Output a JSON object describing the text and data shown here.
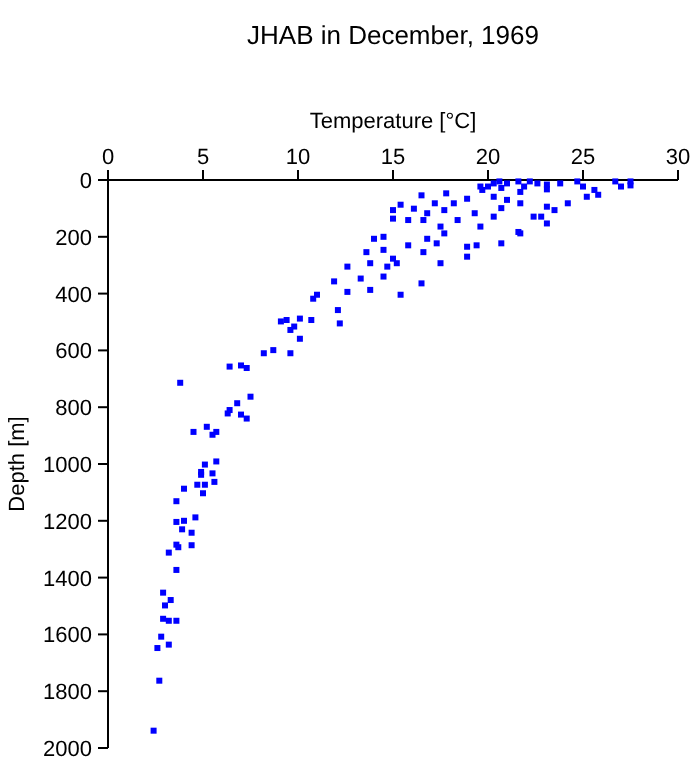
{
  "chart_data": {
    "type": "scatter",
    "title": "JHAB in December, 1969",
    "xlabel": "Temperature [°C]",
    "ylabel": "Depth [m]",
    "xlim": [
      0,
      30
    ],
    "xticks": [
      0,
      5,
      10,
      15,
      20,
      25,
      30
    ],
    "ylim": [
      2000,
      0
    ],
    "yticks": [
      0,
      200,
      400,
      600,
      800,
      1000,
      1200,
      1400,
      1600,
      1800,
      2000
    ],
    "grid": false,
    "marker": "square",
    "series": [
      {
        "color": "#0000ff",
        "x": [
          19.7,
          20.0,
          20.3,
          20.6,
          21.0,
          21.6,
          21.9,
          22.2,
          22.6,
          23.1,
          23.8,
          24.7,
          25.0,
          25.6,
          26.7,
          27.0,
          27.5,
          27.5,
          20.7,
          21.7,
          23.1,
          19.6,
          17.8,
          16.5,
          17.2,
          18.2,
          18.9,
          20.3,
          21.0,
          21.7,
          23.1,
          24.2,
          23.5,
          25.2,
          25.8,
          15.0,
          15.4,
          16.1,
          16.8,
          17.7,
          19.3,
          20.7,
          22.4,
          22.8,
          23.1,
          15.0,
          15.8,
          16.6,
          17.5,
          18.4,
          19.6,
          20.3,
          21.6,
          20.7,
          21.7,
          14.0,
          14.5,
          15.8,
          16.8,
          17.3,
          18.9,
          19.4,
          17.7,
          13.6,
          14.5,
          15.0,
          15.2,
          16.6,
          17.5,
          18.9,
          12.6,
          13.8,
          14.7,
          16.5,
          11.9,
          13.3,
          14.5,
          12.6,
          13.8,
          15.4,
          11.0,
          10.8,
          12.1,
          12.2,
          9.1,
          9.4,
          10.1,
          10.7,
          9.6,
          9.8,
          10.1,
          8.7,
          8.2,
          9.6,
          6.4,
          7.0,
          7.3,
          3.8,
          6.3,
          6.8,
          7.5,
          7.0,
          7.3,
          6.4,
          4.5,
          5.2,
          5.5,
          5.7,
          5.7,
          5.1,
          4.9,
          4.9,
          5.5,
          4.7,
          5.1,
          5.6,
          5.0,
          4.0,
          3.6,
          3.6,
          4.0,
          4.6,
          3.9,
          4.4,
          3.6,
          3.7,
          4.4,
          3.2,
          3.6,
          2.9,
          3.3,
          3.0,
          2.9,
          3.2,
          3.6,
          2.8,
          2.6,
          3.2,
          2.7,
          2.4
        ],
        "values": [
          35,
          23,
          12,
          5,
          12,
          5,
          23,
          5,
          12,
          16,
          12,
          5,
          23,
          35,
          5,
          23,
          19,
          5,
          28,
          42,
          33,
          23,
          47,
          54,
          82,
          82,
          66,
          59,
          70,
          82,
          94,
          82,
          106,
          59,
          52,
          106,
          87,
          101,
          117,
          106,
          117,
          99,
          129,
          129,
          153,
          136,
          141,
          141,
          164,
          141,
          164,
          129,
          183,
          223,
          188,
          207,
          200,
          230,
          207,
          223,
          235,
          230,
          188,
          254,
          246,
          277,
          293,
          254,
          293,
          270,
          305,
          293,
          305,
          364,
          357,
          347,
          340,
          394,
          387,
          404,
          404,
          418,
          458,
          505,
          498,
          493,
          488,
          493,
          528,
          516,
          559,
          599,
          610,
          610,
          657,
          653,
          662,
          714,
          822,
          786,
          763,
          826,
          840,
          810,
          887,
          869,
          897,
          887,
          991,
          1002,
          1028,
          1038,
          1033,
          1073,
          1073,
          1063,
          1103,
          1087,
          1131,
          1204,
          1200,
          1188,
          1230,
          1242,
          1284,
          1293,
          1286,
          1312,
          1373,
          1453,
          1479,
          1498,
          1545,
          1552,
          1552,
          1608,
          1648,
          1636,
          1763,
          1939
        ]
      }
    ]
  }
}
